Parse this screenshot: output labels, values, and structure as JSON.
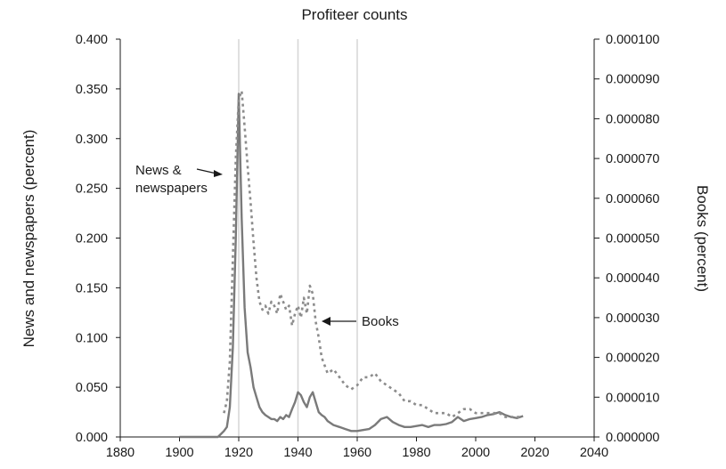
{
  "chart_data": {
    "type": "line",
    "title": "Profiteer counts",
    "xlabel": "",
    "ylabel": "News and newspapers (percent)",
    "y2label": "Books (percent)",
    "xlim": [
      1880,
      2040
    ],
    "ylim": [
      0,
      0.4
    ],
    "y2lim": [
      0,
      0.0001
    ],
    "x_ticks": [
      "1880",
      "1900",
      "1920",
      "1940",
      "1960",
      "1980",
      "2000",
      "2020",
      "2040"
    ],
    "y_ticks": [
      "0.000",
      "0.050",
      "0.100",
      "0.150",
      "0.200",
      "0.250",
      "0.300",
      "0.350",
      "0.400"
    ],
    "y2_ticks": [
      "0.000000",
      "0.000010",
      "0.000020",
      "0.000030",
      "0.000040",
      "0.000050",
      "0.000060",
      "0.000070",
      "0.000080",
      "0.000090",
      "0.000100"
    ],
    "grid": "vertical lines at 1920, 1940, 1960",
    "colors": {
      "news": "#7a7a7a",
      "books": "#8c8c8c",
      "grid": "#d6d6d6",
      "axis": "#1a1a1a"
    },
    "annotations": [
      {
        "text_lines": [
          "News &",
          "newspapers"
        ],
        "x": 1915,
        "y": 0.27
      },
      {
        "text": "Books",
        "x": 1947,
        "y": 0.12
      }
    ],
    "series": [
      {
        "name": "News & newspapers",
        "axis": "left",
        "style": "solid",
        "x": [
          1900,
          1913,
          1914,
          1915,
          1916,
          1917,
          1918,
          1919,
          1920,
          1921,
          1922,
          1923,
          1924,
          1925,
          1926,
          1927,
          1928,
          1929,
          1930,
          1931,
          1932,
          1933,
          1934,
          1935,
          1936,
          1937,
          1938,
          1939,
          1940,
          1941,
          1942,
          1943,
          1944,
          1945,
          1946,
          1947,
          1948,
          1949,
          1950,
          1952,
          1954,
          1956,
          1958,
          1960,
          1962,
          1964,
          1966,
          1968,
          1970,
          1972,
          1974,
          1976,
          1978,
          1980,
          1982,
          1984,
          1986,
          1988,
          1990,
          1992,
          1994,
          1996,
          1998,
          2000,
          2002,
          2004,
          2006,
          2008,
          2010,
          2012,
          2014,
          2016
        ],
        "values": [
          0.0,
          0.0,
          0.003,
          0.006,
          0.01,
          0.03,
          0.09,
          0.2,
          0.345,
          0.22,
          0.13,
          0.085,
          0.07,
          0.05,
          0.04,
          0.03,
          0.025,
          0.022,
          0.02,
          0.018,
          0.018,
          0.016,
          0.02,
          0.018,
          0.022,
          0.02,
          0.028,
          0.035,
          0.045,
          0.042,
          0.035,
          0.03,
          0.04,
          0.045,
          0.035,
          0.025,
          0.022,
          0.02,
          0.016,
          0.012,
          0.01,
          0.008,
          0.006,
          0.006,
          0.007,
          0.008,
          0.012,
          0.018,
          0.02,
          0.015,
          0.012,
          0.01,
          0.01,
          0.011,
          0.012,
          0.01,
          0.012,
          0.012,
          0.013,
          0.015,
          0.02,
          0.016,
          0.018,
          0.019,
          0.02,
          0.022,
          0.023,
          0.025,
          0.022,
          0.02,
          0.019,
          0.021
        ]
      },
      {
        "name": "Books",
        "axis": "right",
        "style": "dashed",
        "x": [
          1915,
          1916,
          1917,
          1918,
          1919,
          1920,
          1921,
          1922,
          1923,
          1924,
          1925,
          1926,
          1927,
          1928,
          1929,
          1930,
          1931,
          1932,
          1933,
          1934,
          1935,
          1936,
          1937,
          1938,
          1939,
          1940,
          1941,
          1942,
          1943,
          1944,
          1945,
          1946,
          1947,
          1948,
          1949,
          1950,
          1952,
          1954,
          1956,
          1958,
          1960,
          1962,
          1964,
          1966,
          1968,
          1970,
          1972,
          1974,
          1976,
          1978,
          1980,
          1982,
          1984,
          1986,
          1988,
          1990,
          1992,
          1994,
          1996,
          1998,
          2000,
          2002,
          2004,
          2006,
          2008,
          2010,
          2012,
          2014,
          2016
        ],
        "values": [
          6e-06,
          9e-06,
          1.9e-05,
          4.5e-05,
          7e-05,
          8.5e-05,
          8.7e-05,
          7.8e-05,
          6.8e-05,
          5.9e-05,
          4.9e-05,
          4e-05,
          3.4e-05,
          3.2e-05,
          3.3e-05,
          3.1e-05,
          3.4e-05,
          3.3e-05,
          3.1e-05,
          3.6e-05,
          3.4e-05,
          3.2e-05,
          3.3e-05,
          2.8e-05,
          3.1e-05,
          3.3e-05,
          3e-05,
          3.5e-05,
          3.1e-05,
          3.8e-05,
          3.6e-05,
          2.9e-05,
          2.5e-05,
          2e-05,
          1.8e-05,
          1.6e-05,
          1.7e-05,
          1.5e-05,
          1.3e-05,
          1.2e-05,
          1.3e-05,
          1.5e-05,
          1.5e-05,
          1.6e-05,
          1.4e-05,
          1.3e-05,
          1.2e-05,
          1.1e-05,
          9e-06,
          9e-06,
          8e-06,
          8e-06,
          7e-06,
          6e-06,
          6e-06,
          6e-06,
          5e-06,
          6e-06,
          7e-06,
          7e-06,
          6e-06,
          6e-06,
          6e-06,
          6e-06,
          6e-06,
          5e-06,
          5e-06,
          5e-06,
          5e-06
        ]
      }
    ]
  }
}
